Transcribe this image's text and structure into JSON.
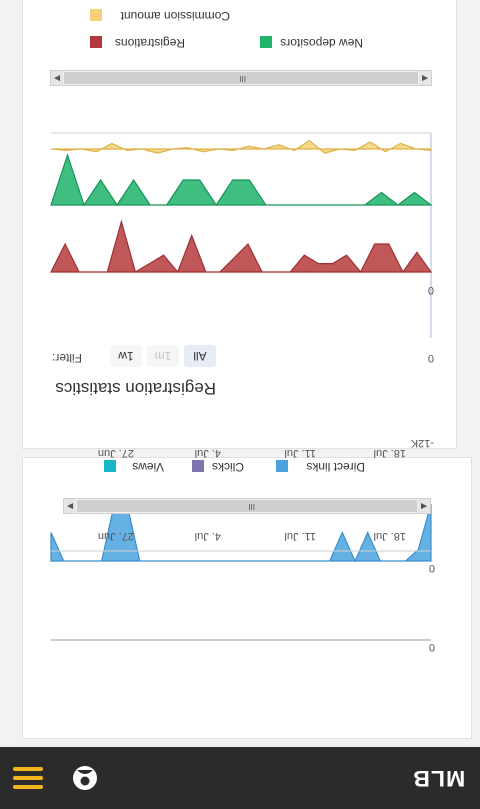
{
  "brand": {
    "logo_text": "MLB",
    "accent": "#f2b51c",
    "bar_color": "#2b2b2b"
  },
  "header": {
    "user_icon": "user-icon",
    "menu_icon": "hamburger-menu-icon"
  },
  "traffic_card": {
    "legend": [
      {
        "label": "Direct links",
        "color": "#4aa3df"
      },
      {
        "label": "Clicks",
        "color": "#7e75b0"
      },
      {
        "label": "Views",
        "color": "#18b5c7"
      }
    ],
    "scrollbar_grip": "III",
    "chart_data": {
      "type": "area",
      "x_ticks": [
        "27. Jun",
        "4. Jul",
        "11. Jul",
        "18. Jul"
      ],
      "panels": [
        {
          "axis_label": "0",
          "series": "Direct links",
          "color": "#4aa3df",
          "values": [
            -1,
            -0.2,
            0,
            0,
            0,
            -0.5,
            0,
            -0.5,
            0,
            0,
            0,
            0,
            0,
            0,
            0,
            0,
            0,
            0,
            0,
            0,
            0,
            0,
            0,
            0,
            -1,
            -1,
            0,
            0,
            0,
            0,
            -0.5
          ]
        },
        {
          "axis_label": "0",
          "series": "",
          "color": "#7e75b0",
          "values": []
        }
      ]
    }
  },
  "registration_card": {
    "title": "Registration statistics",
    "filter_label": "Filter:",
    "range_buttons": [
      {
        "label": "1w",
        "state": "normal"
      },
      {
        "label": "1m",
        "state": "disabled"
      },
      {
        "label": "All",
        "state": "selected"
      }
    ],
    "legend": [
      {
        "label": "Registrations",
        "color": "#b5393c"
      },
      {
        "label": "New depositors",
        "color": "#1fb36b"
      },
      {
        "label": "Commission amount",
        "color": "#f5d277"
      }
    ],
    "scrollbar_grip": "III",
    "chart_data": {
      "type": "area",
      "x_ticks": [
        "27. Jun",
        "4. Jul",
        "11. Jul",
        "18. Jul"
      ],
      "panels": [
        {
          "axis_label": "0",
          "series": "Registrations",
          "color": "#b5393c",
          "values": [
            0,
            -0.7,
            0,
            -1,
            -1,
            0,
            -0.6,
            -0.3,
            -0.3,
            -0.6,
            0,
            0,
            0,
            -1,
            -0.5,
            0,
            0,
            -1.3,
            0,
            -0.6,
            -0.3,
            0,
            -1.8,
            0,
            0,
            0,
            -1,
            0
          ]
        },
        {
          "axis_label": "0",
          "series": "New depositors",
          "color": "#1fb36b",
          "values": [
            0,
            -0.5,
            0,
            -0.5,
            0,
            0,
            0,
            0,
            0,
            0,
            0,
            -1,
            -1,
            0,
            -1,
            -1,
            0,
            0,
            -1,
            0,
            -1,
            0,
            -2,
            0
          ]
        },
        {
          "axis_label": "-12K",
          "series": "Commission amount",
          "color": "#f5d277",
          "values": [
            0.1,
            0,
            -0.4,
            0.2,
            -0.5,
            0.1,
            0,
            0.3,
            -0.6,
            0.1,
            -0.3,
            0,
            -0.2,
            0.1,
            0,
            0.2,
            -0.1,
            0,
            0.3,
            0,
            0.1,
            -0.4,
            0.2,
            0,
            0.1,
            0
          ]
        }
      ]
    }
  }
}
